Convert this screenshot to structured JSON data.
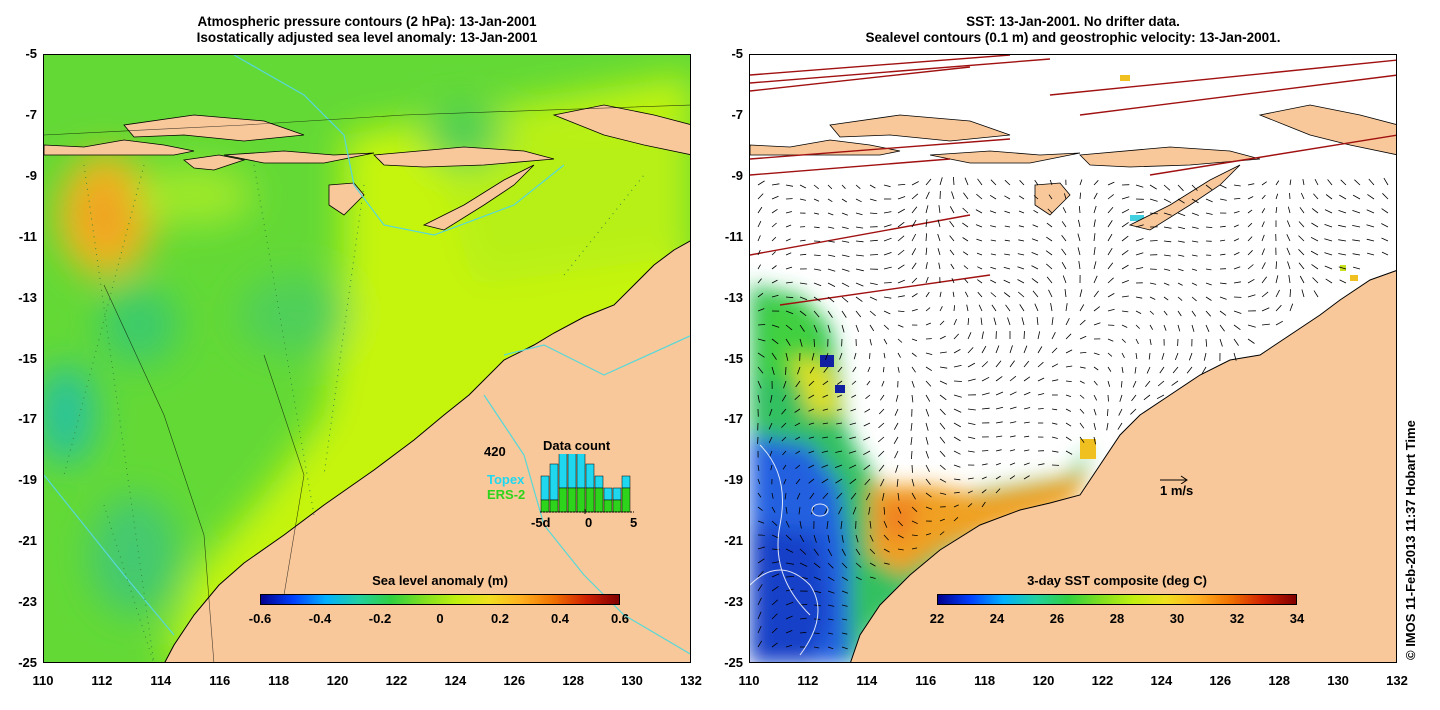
{
  "left_panel": {
    "title_line1": "Atmospheric pressure contours (2 hPa): 13-Jan-2001",
    "title_line2": "Isostatically adjusted sea level anomaly: 13-Jan-2001",
    "colorbar": {
      "label": "Sea level anomaly (m)",
      "ticks": [
        "-0.6",
        "-0.4",
        "-0.2",
        "0",
        "0.2",
        "0.4",
        "0.6"
      ],
      "range": [
        -0.6,
        0.6
      ]
    },
    "data_count": {
      "title": "Data count",
      "max_label": "420",
      "legend": [
        "Topex",
        "ERS-2"
      ],
      "x_ticks": [
        "-5d",
        "0",
        "5"
      ],
      "topex_values": [
        2,
        3,
        4,
        4,
        3,
        2,
        1,
        1,
        1,
        1
      ],
      "ers2_values": [
        1,
        1,
        2,
        2,
        2,
        2,
        2,
        1,
        1,
        2
      ]
    }
  },
  "right_panel": {
    "title_line1": "SST: 13-Jan-2001. No drifter data.",
    "title_line2": "Sealevel contours (0.1 m) and geostrophic velocity: 13-Jan-2001.",
    "colorbar": {
      "label": "3-day SST composite (deg C)",
      "ticks": [
        "22",
        "24",
        "26",
        "28",
        "30",
        "32",
        "34"
      ],
      "range": [
        22,
        34
      ]
    },
    "velocity_scale": "1 m/s"
  },
  "axes": {
    "y_ticks": [
      "-5",
      "-7",
      "-9",
      "-11",
      "-13",
      "-15",
      "-17",
      "-19",
      "-21",
      "-23",
      "-25"
    ],
    "x_ticks": [
      "110",
      "112",
      "114",
      "116",
      "118",
      "120",
      "122",
      "124",
      "126",
      "128",
      "130",
      "132"
    ]
  },
  "copyright": "© IMOS 11-Feb-2013 11:37 Hobart Time",
  "colors": {
    "land": "#f8c89a",
    "ocean_base": "#63d936",
    "yellow_green": "#c6f50a",
    "anomaly_high": "#f2b81c",
    "anomaly_low": "#2cbf8a",
    "topex": "#1fd8f0",
    "ers2": "#2ed41b"
  }
}
